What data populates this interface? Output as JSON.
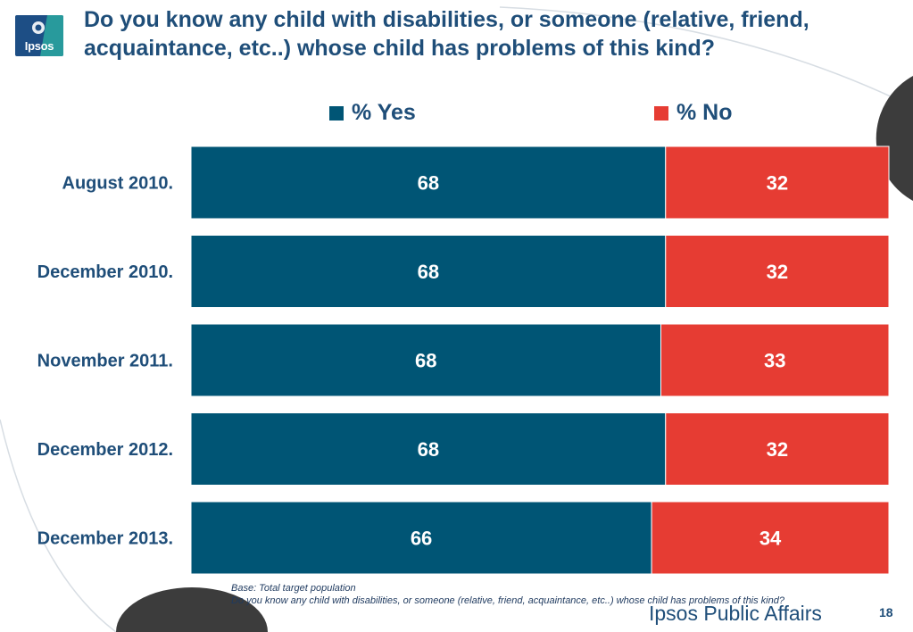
{
  "logo": {
    "text": "Ipsos"
  },
  "title": "Do you know any child with disabilities, or someone (relative, friend, acquaintance, etc..) whose child has problems of this kind?",
  "legend": {
    "yes_label": "% Yes",
    "no_label": "% No"
  },
  "colors": {
    "yes": "#005575",
    "no": "#e63c33",
    "text": "#1f4e79"
  },
  "chart_data": {
    "type": "bar",
    "orientation": "horizontal",
    "stacked": true,
    "percent_stacked": true,
    "categories": [
      "August 2010.",
      "December 2010.",
      "November 2011.",
      "December 2012.",
      "December 2013."
    ],
    "series": [
      {
        "name": "% Yes",
        "values": [
          68,
          68,
          68,
          68,
          66
        ]
      },
      {
        "name": "% No",
        "values": [
          32,
          32,
          33,
          32,
          34
        ]
      }
    ],
    "legend_position": "top",
    "grid": false
  },
  "footnote": {
    "base": "Base: Total target population",
    "question": "Do you know any child with disabilities, or someone (relative, friend, acquaintance, etc..) whose child has problems of this kind?"
  },
  "brand": "Ipsos Public Affairs",
  "page_number": "18"
}
